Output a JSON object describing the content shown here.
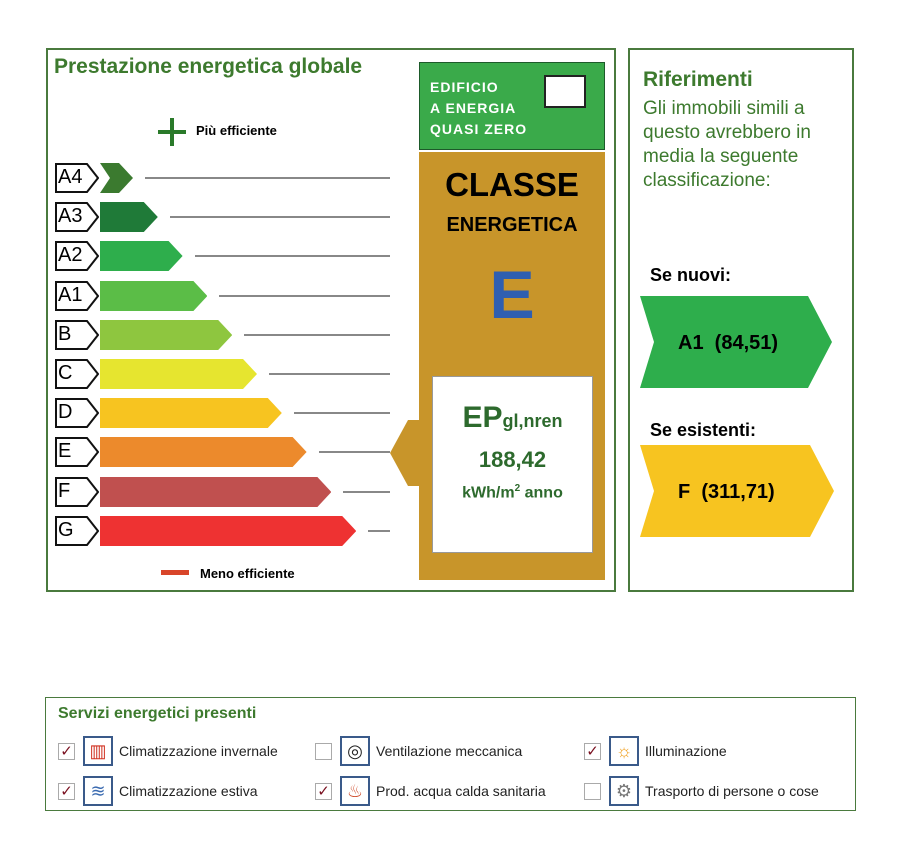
{
  "main": {
    "title": "Prestazione energetica globale",
    "more_efficient": "Più efficiente",
    "less_efficient": "Meno efficiente",
    "classes": [
      {
        "label": "A4",
        "color": "#3b7a2f"
      },
      {
        "label": "A3",
        "color": "#1f7a38"
      },
      {
        "label": "A2",
        "color": "#2eae4c"
      },
      {
        "label": "A1",
        "color": "#5bbd47"
      },
      {
        "label": "B",
        "color": "#8ec63f"
      },
      {
        "label": "C",
        "color": "#e6e52f"
      },
      {
        "label": "D",
        "color": "#f7c420"
      },
      {
        "label": "E",
        "color": "#ec8a2c"
      },
      {
        "label": "F",
        "color": "#c0504f"
      },
      {
        "label": "G",
        "color": "#ee3232"
      }
    ],
    "nzeb": {
      "line1": "EDIFICIO",
      "line2": "A ENERGIA",
      "line3": "QUASI ZERO",
      "checked": false
    },
    "classe": {
      "line1": "CLASSE",
      "line2": "ENERGETICA",
      "value": "E"
    },
    "ep": {
      "label": "EP",
      "sub": "gl,nren",
      "value": "188,42",
      "unit_pre": "kWh/m",
      "unit_sup": "2",
      "unit_post": " anno"
    }
  },
  "references": {
    "title": "Riferimenti",
    "text": "Gli immobili simili a questo avrebbero in media la seguente classificazione:",
    "new_label": "Se nuovi:",
    "new_value": "A1  (84,51)",
    "existing_label": "Se esistenti:",
    "existing_value": "F  (311,71)"
  },
  "services": {
    "title": "Servizi energetici presenti",
    "items": [
      {
        "label": "Climatizzazione invernale",
        "checked": true,
        "icon": "radiator-icon"
      },
      {
        "label": "Ventilazione meccanica",
        "checked": false,
        "icon": "fan-icon"
      },
      {
        "label": "Illuminazione",
        "checked": true,
        "icon": "lightbulb-icon"
      },
      {
        "label": "Climatizzazione estiva",
        "checked": true,
        "icon": "air-conditioning-icon"
      },
      {
        "label": "Prod. acqua calda sanitaria",
        "checked": true,
        "icon": "faucet-icon"
      },
      {
        "label": "Trasporto di persone o cose",
        "checked": false,
        "icon": "gear-icon"
      }
    ]
  }
}
